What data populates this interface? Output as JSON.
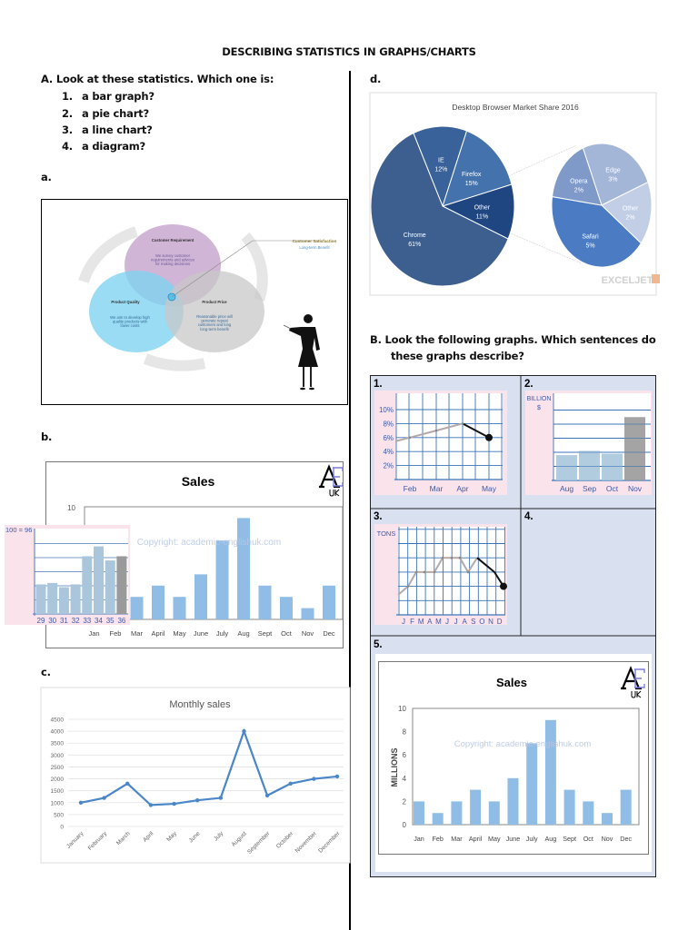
{
  "page": {
    "title": "DESCRIBING STATISTICS IN GRAPHS/CHARTS",
    "section_a": {
      "heading": "A.  Look at these statistics. Which one is:",
      "items": [
        {
          "num": "1.",
          "text": "a bar graph?"
        },
        {
          "num": "2.",
          "text": "a pie chart?"
        },
        {
          "num": "3.",
          "text": "a line chart?"
        },
        {
          "num": "4.",
          "text": "a diagram?"
        }
      ],
      "label_a": "a.",
      "label_b": "b.",
      "label_c": "c.",
      "label_d": "d."
    },
    "section_b": {
      "heading_line1": "B.   Look the following graphs. Which sentences do",
      "heading_line2": "these graphs describe?",
      "cells": [
        "1.",
        "2.",
        "3.",
        "4.",
        "5."
      ]
    }
  },
  "diagram_a": {
    "top": {
      "title": "Customer Requirement",
      "body": [
        "We survey customer",
        "requirements and advices",
        "for making decisions"
      ],
      "color": "#c9a8cf"
    },
    "left": {
      "title": "Product Quality",
      "body": [
        "We aim to develop high",
        "quality products with",
        "lower costs"
      ],
      "color": "#7fd3f0"
    },
    "right": {
      "title": "Product Price",
      "body": [
        "Reasonable price will",
        "generate repeat",
        "customers and long",
        "long-term benefit"
      ],
      "color": "#c8c8c8"
    },
    "callout": {
      "title": "Customer Satisfaction",
      "subtitle": "Long-term Benefit"
    }
  },
  "chart_data": [
    {
      "id": "b",
      "type": "bar",
      "title": "Sales",
      "watermark": "Copyright: academic-englishuk.com",
      "logo": {
        "main": "AE",
        "sub": "UK"
      },
      "categories": [
        "Jan",
        "Feb",
        "Mar",
        "April",
        "May",
        "June",
        "July",
        "Aug",
        "Sept",
        "Oct",
        "Nov",
        "Dec"
      ],
      "values": [
        2,
        1,
        2,
        3,
        2,
        4,
        7,
        9,
        3,
        2,
        1,
        3
      ],
      "ylim": [
        0,
        10
      ],
      "ytick_top": "10",
      "bar_color": "#8fbde6",
      "inset": {
        "type": "bar",
        "label": "100 = 96",
        "categories": [
          "29",
          "30",
          "31",
          "32",
          "33",
          "34",
          "35",
          "36"
        ],
        "values": [
          2.1,
          2.2,
          1.9,
          2.1,
          4.1,
          4.8,
          3.8,
          4.1
        ],
        "ylim": [
          0,
          6
        ],
        "highlight": "36",
        "bar_color": "#a9c6dc",
        "highlight_color": "#9a9a9a"
      }
    },
    {
      "id": "c",
      "type": "line",
      "title": "Monthly sales",
      "categories": [
        "January",
        "February",
        "March",
        "April",
        "May",
        "June",
        "July",
        "August",
        "September",
        "October",
        "November",
        "December"
      ],
      "values": [
        1000,
        1200,
        1800,
        900,
        950,
        1100,
        1200,
        4000,
        1300,
        1800,
        2000,
        2100
      ],
      "yticks": [
        "0",
        "500",
        "1000",
        "1500",
        "2000",
        "2500",
        "3000",
        "3500",
        "4000",
        "4500"
      ],
      "ylim": [
        0,
        4500
      ],
      "grid": true,
      "line_color": "#4a86c8"
    },
    {
      "id": "d",
      "type": "pie",
      "title": "Desktop Browser Market Share 2016",
      "watermark": "EXCELJET",
      "slices": [
        {
          "label": "IE",
          "value": 12,
          "text": "12%",
          "color": "#3a629a"
        },
        {
          "label": "Firefox",
          "value": 15,
          "text": "15%",
          "color": "#4472ad"
        },
        {
          "label": "Other",
          "value": 11,
          "text": "11%",
          "color": "#1f4680"
        },
        {
          "label": "Chrome",
          "value": 61,
          "text": "61%",
          "color": "#3c5f8f"
        }
      ],
      "breakdown_of": "Other",
      "sub_slices": [
        {
          "label": "Edge",
          "value": 3,
          "text": "3%",
          "color": "#a4b6d8"
        },
        {
          "label": "Other",
          "value": 2,
          "text": "2%",
          "color": "#c2cee6"
        },
        {
          "label": "Safari",
          "value": 5,
          "text": "5%",
          "color": "#4b7cc3"
        },
        {
          "label": "Opera",
          "value": 2,
          "text": "2%",
          "color": "#7f9ac9"
        }
      ]
    },
    {
      "id": "1",
      "type": "line",
      "categories": [
        "Feb",
        "Mar",
        "Apr",
        "May"
      ],
      "x": [
        0.5,
        1,
        2,
        3,
        4
      ],
      "values": [
        5.5,
        6,
        7,
        8,
        6
      ],
      "yticks": [
        "2%",
        "4%",
        "6%",
        "8%",
        "10%"
      ],
      "ylim": [
        0,
        12
      ],
      "highlight_last_segment": true,
      "grid": true
    },
    {
      "id": "2",
      "type": "bar",
      "ylabel_line1": "BILLION",
      "ylabel_line2": "$",
      "categories": [
        "Aug",
        "Sep",
        "Oct",
        "Nov"
      ],
      "values": [
        1.8,
        2.1,
        1.9,
        4.5
      ],
      "ylim": [
        0,
        6
      ],
      "highlight": "Nov",
      "bar_color": "#a9c6dc",
      "highlight_color": "#9a9a9a"
    },
    {
      "id": "3",
      "type": "line",
      "ylabel": "TONS",
      "categories": [
        "J",
        "F",
        "M",
        "A",
        "M",
        "J",
        "J",
        "A",
        "S",
        "O",
        "N",
        "D"
      ],
      "values": [
        1.4,
        2,
        3,
        3,
        3,
        4,
        4,
        4,
        3,
        4,
        3,
        2
      ],
      "ylim": [
        0,
        6
      ],
      "highlight_from": "O",
      "grid": true
    },
    {
      "id": "5",
      "type": "bar",
      "title": "Sales",
      "ylabel": "MILLIONS",
      "watermark": "Copyright: academic-englishuk.com",
      "logo": {
        "main": "AE",
        "sub": "UK"
      },
      "categories": [
        "Jan",
        "Feb",
        "Mar",
        "April",
        "May",
        "June",
        "July",
        "Aug",
        "Sept",
        "Oct",
        "Nov",
        "Dec"
      ],
      "values": [
        2,
        1,
        2,
        3,
        2,
        4,
        7,
        9,
        3,
        2,
        1,
        3
      ],
      "yticks": [
        "0",
        "2",
        "4",
        "6",
        "8",
        "10"
      ],
      "ylim": [
        0,
        10
      ],
      "bar_color": "#8fbde6"
    }
  ]
}
